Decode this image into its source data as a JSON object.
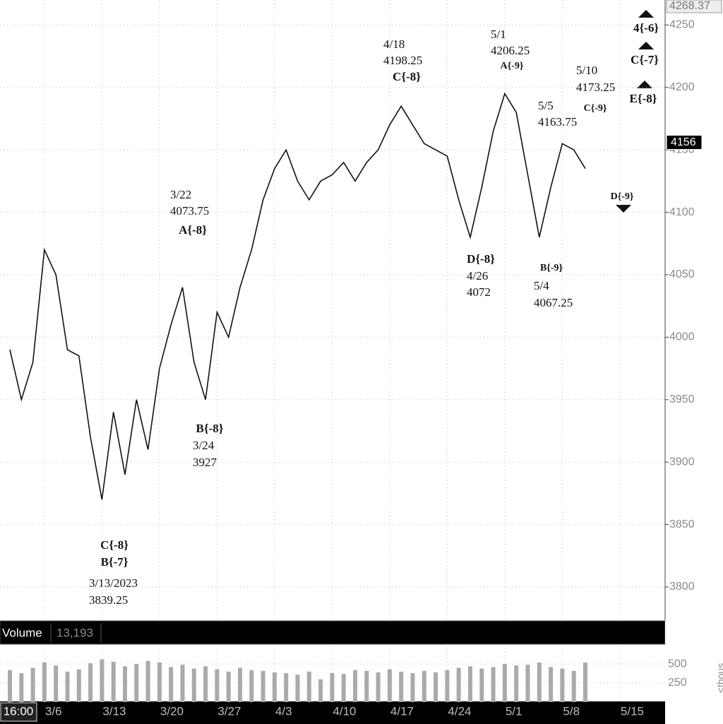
{
  "chart_data": {
    "type": "line",
    "color": "#111111",
    "grid": true,
    "categories": [
      null,
      null,
      null,
      "3/6",
      null,
      null,
      null,
      null,
      "3/13",
      null,
      null,
      null,
      null,
      "3/20",
      null,
      null,
      null,
      null,
      "3/27",
      null,
      null,
      null,
      null,
      "4/3",
      null,
      null,
      null,
      null,
      "4/10",
      null,
      null,
      null,
      null,
      "4/17",
      null,
      null,
      null,
      null,
      "4/24",
      null,
      null,
      null,
      null,
      "5/1",
      null,
      null,
      null,
      null,
      "5/8",
      null,
      null,
      null,
      null,
      "5/15"
    ],
    "values": [
      3990,
      3950,
      3980,
      4070,
      4050,
      3990,
      3985,
      3920,
      3870,
      3940,
      3890,
      3950,
      3910,
      3975,
      4010,
      4040,
      3980,
      3950,
      4020,
      4000,
      4040,
      4070,
      4110,
      4135,
      4150,
      4125,
      4110,
      4125,
      4130,
      4140,
      4125,
      4140,
      4150,
      4170,
      4185,
      4170,
      4155,
      4150,
      4145,
      4110,
      4080,
      4120,
      4165,
      4195,
      4180,
      4130,
      4080,
      4120,
      4155,
      4150,
      4135,
      null,
      null,
      null
    ],
    "ylim": [
      3774,
      4270
    ],
    "yticks": [
      3800,
      3850,
      3900,
      3950,
      4000,
      4050,
      4100,
      4150,
      4200,
      4250
    ],
    "top_price": 4268.37,
    "last_price": 4156,
    "annotations": [
      {
        "date": "3/13/2023",
        "value": 3839.25,
        "labels": [
          "C{-8}",
          "B{-7}"
        ]
      },
      {
        "date": "3/22",
        "value": 4073.75,
        "labels": [
          "A{-8}"
        ]
      },
      {
        "date": "3/24",
        "value": 3927,
        "labels": [
          "B{-8}"
        ]
      },
      {
        "date": "4/18",
        "value": 4198.25,
        "labels": [
          "C{-8}"
        ]
      },
      {
        "date": "5/1",
        "value": 4206.25,
        "labels": [
          "A{-9}"
        ]
      },
      {
        "date": "4/26",
        "value": 4072,
        "labels": [
          "D{-8}"
        ]
      },
      {
        "date": "5/4",
        "value": 4067.25,
        "labels": [
          "B{-9}"
        ]
      },
      {
        "date": "5/5",
        "value": 4163.75,
        "labels": []
      },
      {
        "date": "5/10",
        "value": 4173.25,
        "labels": [
          "C{-9}"
        ]
      }
    ],
    "projections": [
      "4{-6}",
      "C{-7}",
      "E{-8}",
      "D{-9}"
    ],
    "volume_title": "Volume",
    "volume_last": {
      "value": 13193,
      "label": "13,193"
    },
    "volume_unit": "<thous",
    "volume_values": [
      420,
      380,
      450,
      520,
      480,
      400,
      430,
      510,
      560,
      530,
      470,
      500,
      540,
      520,
      460,
      490,
      440,
      470,
      430,
      400,
      450,
      420,
      410,
      390,
      380,
      360,
      400,
      300,
      380,
      370,
      420,
      410,
      390,
      430,
      400,
      380,
      410,
      390,
      420,
      450,
      470,
      440,
      460,
      500,
      480,
      490,
      520,
      460,
      440,
      410,
      520,
      null,
      null,
      null
    ],
    "volume_ylim": [
      0,
      760
    ],
    "volume_yticks": [
      250,
      500
    ],
    "time_label": "16:00"
  }
}
